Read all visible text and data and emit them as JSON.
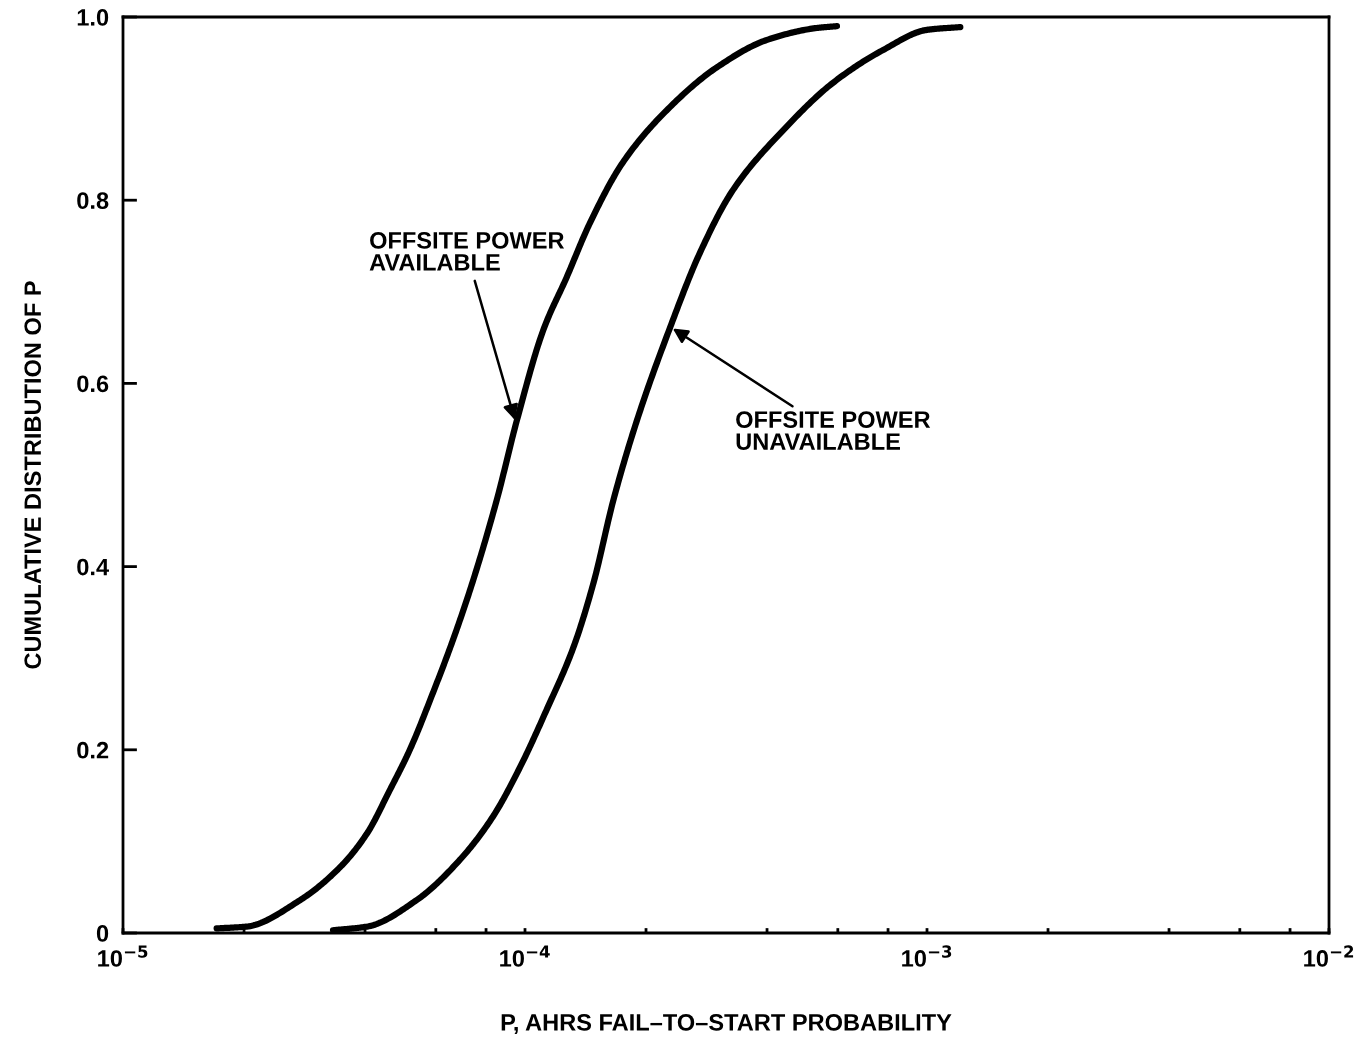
{
  "chart_data": {
    "type": "line",
    "xlabel": "P, AHRS FAIL–TO–START PROBABILITY",
    "ylabel": "CUMULATIVE DISTRIBUTION OF P",
    "log": "x",
    "grid": false,
    "legend": false,
    "marker": "none",
    "line_style": "solid",
    "xlim": [
      1e-05,
      0.01
    ],
    "ylim": [
      0,
      1.0
    ],
    "xticks": [
      {
        "value": 1e-05,
        "label": "10$^{−5}$"
      },
      {
        "value": 2e-05,
        "label": null
      },
      {
        "value": 4e-05,
        "label": null
      },
      {
        "value": 6e-05,
        "label": null
      },
      {
        "value": 8e-05,
        "label": null
      },
      {
        "value": 0.0001,
        "label": "10$^{−4}$"
      },
      {
        "value": 0.0002,
        "label": null
      },
      {
        "value": 0.0004,
        "label": null
      },
      {
        "value": 0.0006,
        "label": null
      },
      {
        "value": 0.0008,
        "label": null
      },
      {
        "value": 0.001,
        "label": "10$^{−3}$"
      },
      {
        "value": 0.002,
        "label": null
      },
      {
        "value": 0.004,
        "label": null
      },
      {
        "value": 0.006,
        "label": null
      },
      {
        "value": 0.008,
        "label": null
      },
      {
        "value": 0.01,
        "label": "10$^{−2}$"
      }
    ],
    "yticks": [
      0,
      0.2,
      0.4,
      0.6,
      0.8,
      {
        "value": 1,
        "label": "1.0"
      }
    ],
    "series": [
      {
        "color": "#000000",
        "x": [
          1.71e-05,
          2.03e-05,
          2.76e-05,
          3.47e-05,
          4.05e-05,
          4.61e-05,
          5.17e-05,
          5.9e-05,
          6.62e-05,
          7.43e-05,
          8.51e-05,
          9.55e-05,
          0.000111,
          0.000127,
          0.000145,
          0.000175,
          0.000225,
          0.0003,
          0.0004,
          0.000532,
          0.000597
        ],
        "values": [
          0.005,
          0.007,
          0.036,
          0.072,
          0.109,
          0.156,
          0.2,
          0.262,
          0.32,
          0.385,
          0.473,
          0.56,
          0.658,
          0.716,
          0.775,
          0.841,
          0.898,
          0.945,
          0.975,
          0.988,
          0.99
        ]
      },
      {
        "color": "#000000",
        "x": [
          3.33e-05,
          4.05e-05,
          5.38e-05,
          6.89e-05,
          8.32e-05,
          9.72e-05,
          0.000113,
          0.000132,
          0.000148,
          0.000166,
          0.00019,
          0.00023,
          0.000272,
          0.000329,
          0.000438,
          0.000583,
          0.000778,
          0.001,
          0.00121
        ],
        "values": [
          0.003,
          0.007,
          0.036,
          0.08,
          0.127,
          0.181,
          0.243,
          0.312,
          0.382,
          0.473,
          0.56,
          0.662,
          0.742,
          0.811,
          0.876,
          0.928,
          0.964,
          0.986,
          0.989
        ]
      }
    ],
    "annotations": [
      {
        "text": "OFFSITE POWER\nAVAILABLE",
        "x": 9.44e-05,
        "y": 0.56
      },
      {
        "text": "OFFSITE POWER\nUNAVAILABLE",
        "x": 0.000233,
        "y": 0.66
      }
    ]
  }
}
